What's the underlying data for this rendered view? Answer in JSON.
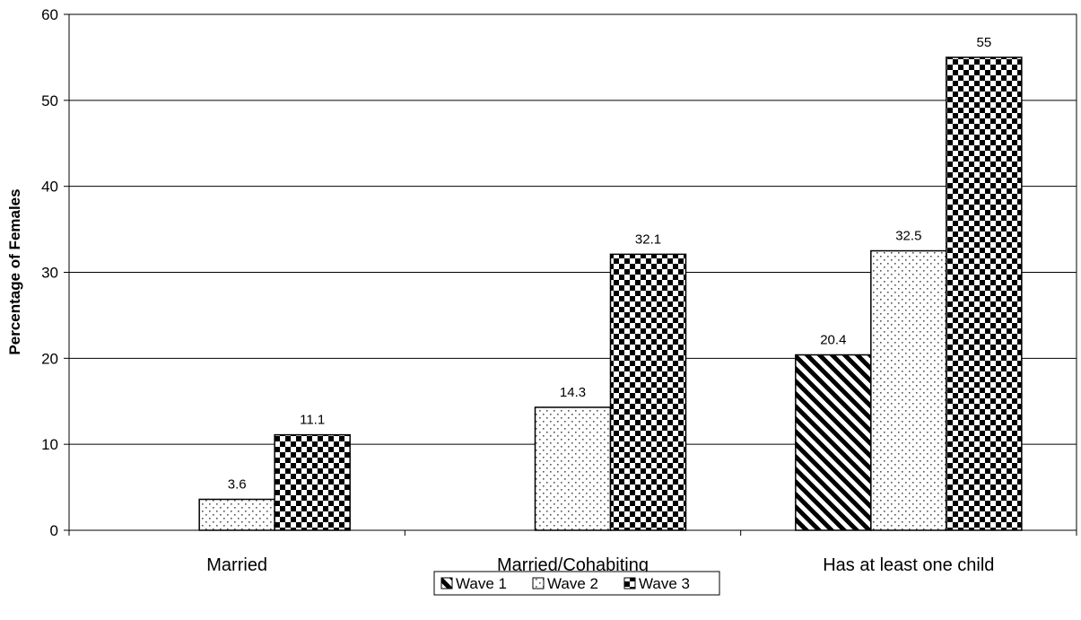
{
  "chart_data": {
    "type": "bar",
    "categories": [
      "Married",
      "Married/Cohabiting",
      "Has at least one child"
    ],
    "series": [
      {
        "name": "Wave 1",
        "values": [
          null,
          null,
          20.4
        ],
        "labels": [
          "",
          "",
          "20.4"
        ],
        "pattern": "diagonal-hatch"
      },
      {
        "name": "Wave 2",
        "values": [
          3.6,
          14.3,
          32.5
        ],
        "labels": [
          "3.6",
          "14.3",
          "32.5"
        ],
        "pattern": "dots"
      },
      {
        "name": "Wave 3",
        "values": [
          11.1,
          32.1,
          55
        ],
        "labels": [
          "11.1",
          "32.1",
          "55"
        ],
        "pattern": "checkerboard"
      }
    ],
    "ylabel": "Percentage of Females",
    "xlabel": "",
    "ylim": [
      0,
      60
    ],
    "yticks": [
      "0",
      "10",
      "20",
      "30",
      "40",
      "50",
      "60"
    ],
    "grid": true,
    "legend_position": "bottom-center"
  }
}
